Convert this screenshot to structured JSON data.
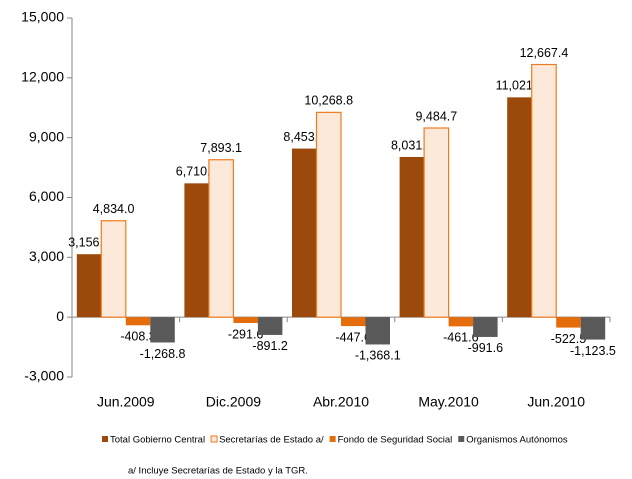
{
  "chart_data": {
    "type": "bar",
    "categories": [
      "Jun.2009",
      "Dic.2009",
      "Abr.2010",
      "May.2010",
      "Jun.2010"
    ],
    "series": [
      {
        "name": "Total Gobierno Central",
        "color": "#9c4a0c",
        "values": [
          3156.9,
          6710.4,
          8453.2,
          8031.5,
          11021.4
        ],
        "value_labels": [
          "3,156.9",
          "6,710.4",
          "8,453.2",
          "8,031.5",
          "11,021.4"
        ]
      },
      {
        "name": "Secretarías  de Estado a/",
        "color": "#fde9d9",
        "values": [
          4834.0,
          7893.1,
          10268.8,
          9484.7,
          12667.4
        ],
        "value_labels": [
          "4,834.0",
          "7,893.1",
          "10,268.8",
          "9,484.7",
          "12,667.4"
        ]
      },
      {
        "name": "Fondo de Seguridad Social",
        "color": "#e46c0a",
        "values": [
          -408.3,
          -291.6,
          -447.6,
          -461.6,
          -522.5
        ],
        "value_labels": [
          "-408.3",
          "-291.6",
          "-447.6",
          "-461.6",
          "-522.5"
        ]
      },
      {
        "name": "Organismos Autónomos",
        "color": "#595959",
        "values": [
          -1268.8,
          -891.2,
          -1368.1,
          -991.6,
          -1123.5
        ],
        "value_labels": [
          "-1,268.8",
          "-891.2",
          "-1,368.1",
          "-991.6",
          "-1,123.5"
        ]
      }
    ],
    "ylim": [
      -3000,
      15000
    ],
    "yticks": [
      {
        "value": -3000,
        "label": "-3,000"
      },
      0,
      {
        "value": 3000,
        "label": "3,000"
      },
      {
        "value": 6000,
        "label": "6,000"
      },
      {
        "value": 9000,
        "label": "9,000"
      },
      {
        "value": 12000,
        "label": "12,000"
      },
      {
        "value": 15000,
        "label": "15,000"
      }
    ],
    "legend": "bottom",
    "note": "a/ Incluye Secretarías de Estado y la TGR."
  }
}
